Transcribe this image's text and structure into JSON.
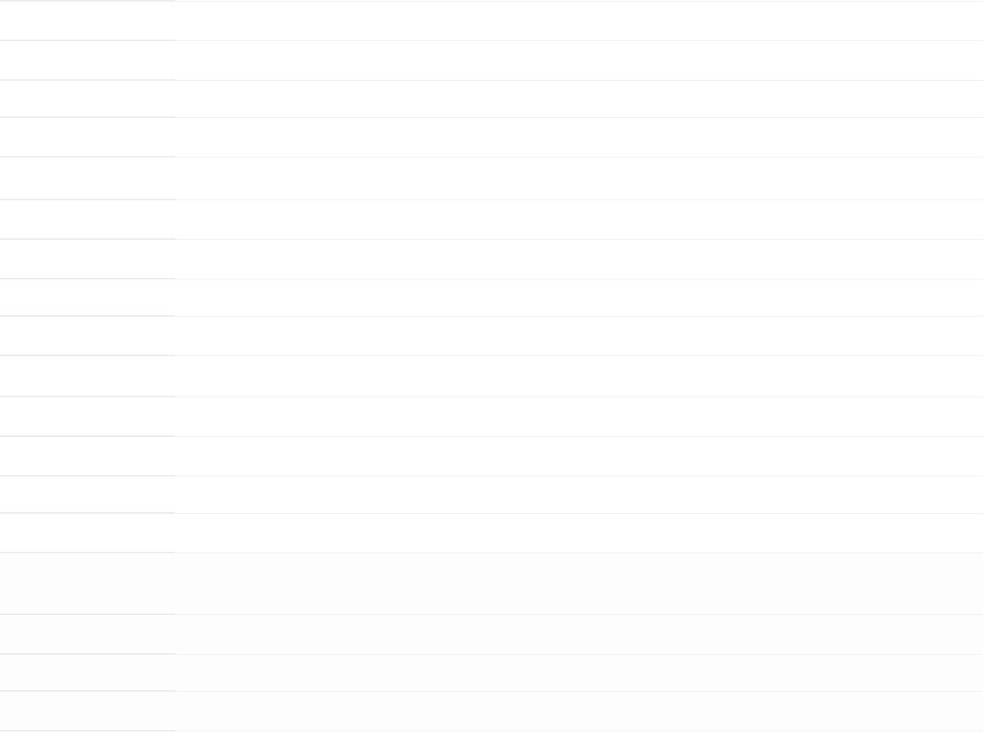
{
  "list": {
    "items": [
      {},
      {},
      {},
      {},
      {},
      {},
      {},
      {},
      {},
      {},
      {},
      {},
      {},
      {},
      {},
      {},
      {},
      {}
    ]
  }
}
